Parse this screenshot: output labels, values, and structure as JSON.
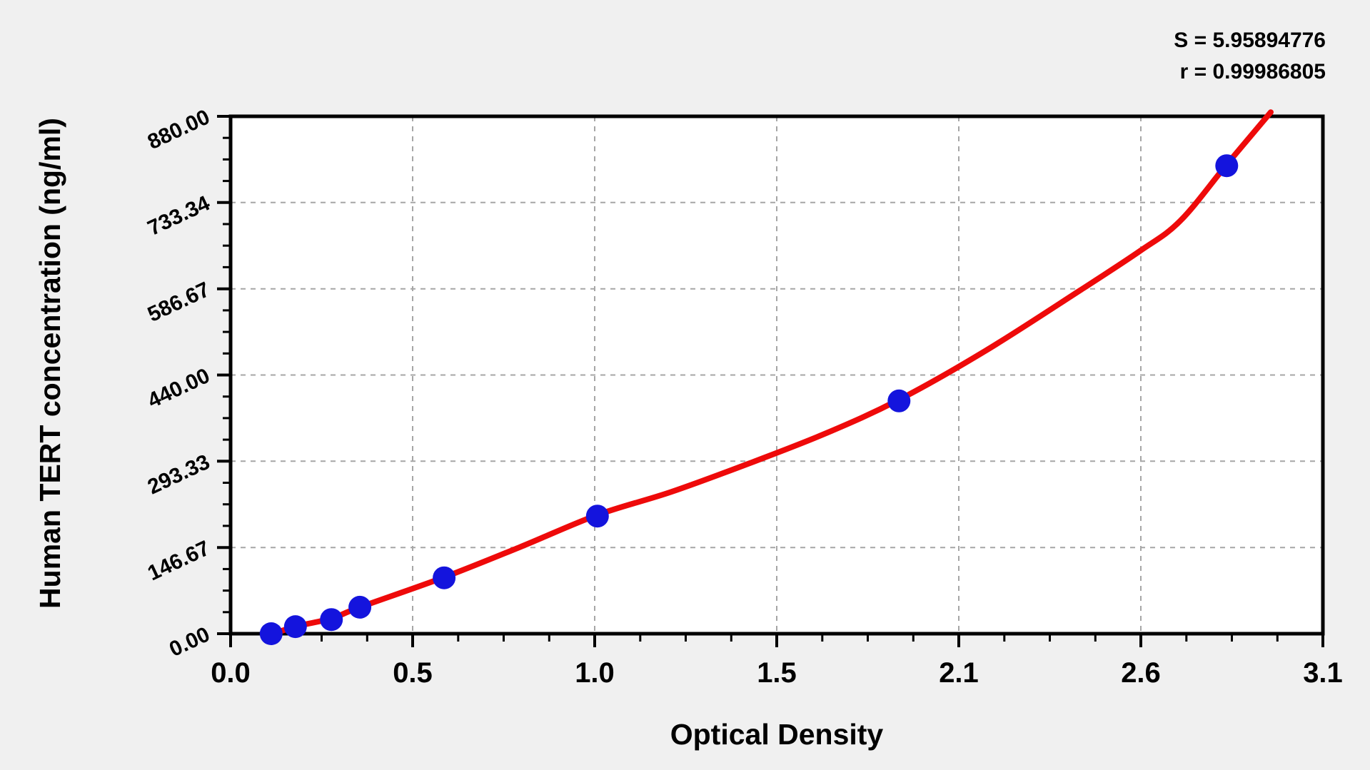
{
  "stats": {
    "s": "S = 5.95894776",
    "r": "r = 0.99986805"
  },
  "chart_data": {
    "type": "scatter",
    "title": "",
    "xlabel": "Optical Density",
    "ylabel": "Human TERT concentration (ng/ml)",
    "legend": "none",
    "grid": "dashed major gridlines, both axes",
    "x_axis": {
      "min": 0.0,
      "max": 3.1,
      "tick_labels": [
        "0.0",
        "0.5",
        "1.0",
        "1.5",
        "2.1",
        "2.6",
        "3.1"
      ],
      "minor_divisions": 4
    },
    "y_axis": {
      "min": 0.0,
      "max": 880.0,
      "tick_labels_top_to_bottom": [
        "880.00",
        "733.34",
        "586.67",
        "440.00",
        "293.33",
        "146.67",
        "0.00"
      ],
      "minor_divisions": 4
    },
    "fit": {
      "S": 5.95894776,
      "r": 0.99986805
    },
    "points": [
      {
        "od": 0.115,
        "conc": 0
      },
      {
        "od": 0.184,
        "conc": 12
      },
      {
        "od": 0.286,
        "conc": 24
      },
      {
        "od": 0.367,
        "conc": 45
      },
      {
        "od": 0.606,
        "conc": 95
      },
      {
        "od": 1.041,
        "conc": 200
      },
      {
        "od": 1.897,
        "conc": 396
      },
      {
        "od": 2.827,
        "conc": 796
      }
    ],
    "curve": [
      [
        0.101,
        -4
      ],
      [
        0.184,
        12
      ],
      [
        0.286,
        26
      ],
      [
        0.367,
        45
      ],
      [
        0.606,
        96
      ],
      [
        0.82,
        147
      ],
      [
        1.041,
        202
      ],
      [
        1.25,
        241
      ],
      [
        1.473,
        290
      ],
      [
        1.69,
        341
      ],
      [
        1.897,
        398
      ],
      [
        2.142,
        481
      ],
      [
        2.411,
        584
      ],
      [
        2.581,
        651
      ],
      [
        2.695,
        702
      ],
      [
        2.827,
        798
      ],
      [
        2.952,
        887
      ]
    ],
    "colors": {
      "curve": "#ee0a0a",
      "points": "#1414dd",
      "grid": "#a6a6a6",
      "axis": "#000000",
      "plot_bg": "#ffffff",
      "page_bg": "#f0f0f0"
    }
  }
}
